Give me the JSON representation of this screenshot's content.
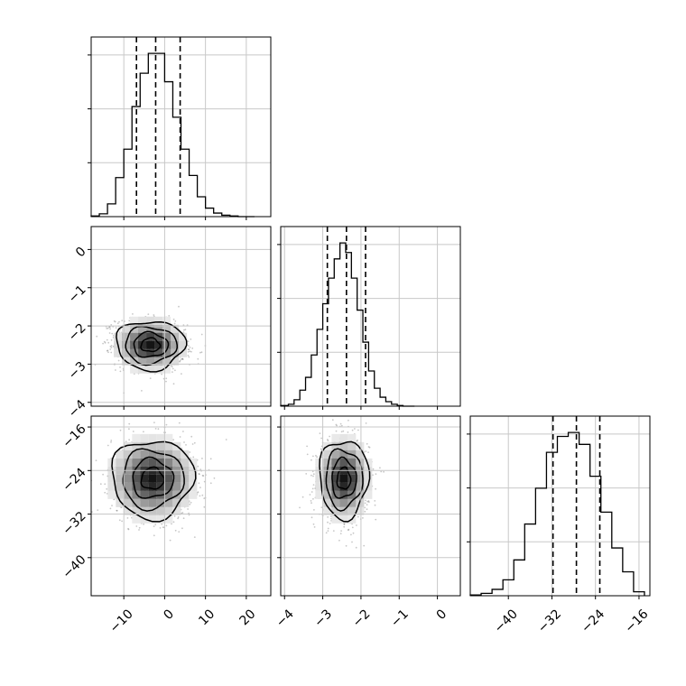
{
  "chart_data": {
    "type": "corner",
    "parameters": [
      {
        "id": "p1",
        "range": [
          -18,
          26
        ],
        "ticks": [
          -10,
          0,
          10,
          20
        ],
        "tick_labels": [
          "−10",
          "0",
          "10",
          "20"
        ]
      },
      {
        "id": "p2",
        "range": [
          -4.1,
          0.6
        ],
        "ticks": [
          -4,
          -3,
          -2,
          -1,
          0
        ],
        "tick_labels": [
          "−4",
          "−3",
          "−2",
          "−1",
          "0"
        ]
      },
      {
        "id": "p3",
        "range": [
          -47,
          -14
        ],
        "ticks": [
          -40,
          -32,
          -24,
          -16
        ],
        "tick_labels": [
          "−40",
          "−32",
          "−24",
          "−16"
        ]
      }
    ],
    "grid": true,
    "histograms": [
      {
        "param": "p1",
        "quantiles": [
          -6.9,
          -2.2,
          3.8
        ],
        "bin_edges": [
          -18,
          -16,
          -14,
          -12,
          -10,
          -8,
          -6,
          -4,
          -2,
          0,
          2,
          4,
          6,
          8,
          10,
          12,
          14,
          16,
          18,
          20,
          22
        ],
        "counts": [
          1,
          4,
          18,
          55,
          95,
          155,
          202,
          230,
          230,
          190,
          140,
          95,
          58,
          28,
          12,
          5,
          2,
          1,
          0,
          0
        ]
      },
      {
        "param": "p2",
        "quantiles": [
          -2.88,
          -2.38,
          -1.88
        ],
        "bin_edges": [
          -4.1,
          -3.9,
          -3.75,
          -3.6,
          -3.45,
          -3.3,
          -3.15,
          -3.0,
          -2.85,
          -2.7,
          -2.55,
          -2.4,
          -2.25,
          -2.1,
          -1.95,
          -1.8,
          -1.65,
          -1.5,
          -1.35,
          -1.2,
          -1.05,
          -0.9,
          -0.6
        ],
        "counts": [
          1,
          3,
          10,
          25,
          45,
          80,
          120,
          160,
          200,
          230,
          255,
          240,
          200,
          150,
          100,
          55,
          28,
          14,
          7,
          3,
          1,
          0
        ]
      },
      {
        "param": "p3",
        "quantiles": [
          -31.8,
          -27.5,
          -23.2
        ],
        "bin_edges": [
          -47,
          -45,
          -43,
          -41,
          -39,
          -37,
          -35,
          -33,
          -31,
          -29,
          -27,
          -25,
          -23,
          -21,
          -19,
          -17,
          -15
        ],
        "counts": [
          1,
          3,
          8,
          20,
          45,
          90,
          135,
          180,
          200,
          205,
          190,
          150,
          105,
          60,
          30,
          5
        ]
      }
    ],
    "scatter_2d": [
      {
        "x_param": "p1",
        "y_param": "p2",
        "center": [
          -3.5,
          -2.5
        ],
        "sigma": [
          4.2,
          0.32
        ],
        "correlation": -0.15
      },
      {
        "x_param": "p1",
        "y_param": "p3",
        "center": [
          -3,
          -25.5
        ],
        "sigma": [
          5.0,
          3.6
        ],
        "correlation": -0.05
      },
      {
        "x_param": "p2",
        "y_param": "p3",
        "center": [
          -2.45,
          -25.5
        ],
        "sigma": [
          0.32,
          3.6
        ],
        "correlation": 0.0
      }
    ]
  }
}
